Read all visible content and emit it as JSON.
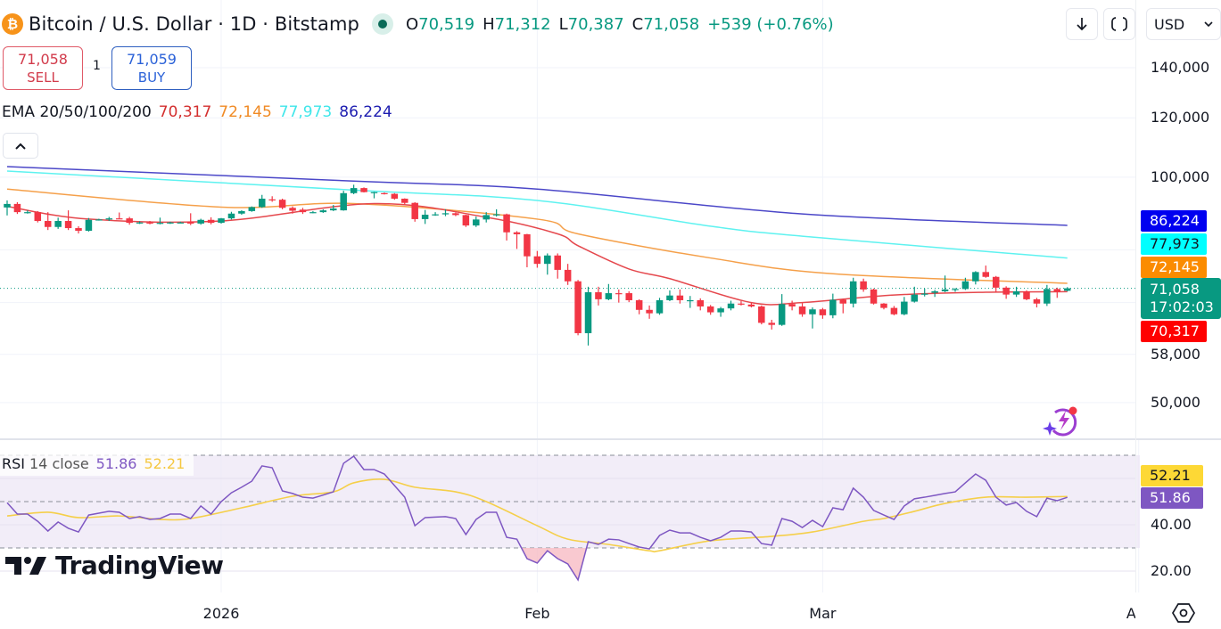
{
  "header": {
    "symbol_icon": "bitcoin-icon",
    "title": "Bitcoin / U.S. Dollar · 1D · Bitstamp",
    "market_status_icon": "market-open-dot-icon",
    "ohlc": {
      "o_label": "O",
      "o_value": "70,519",
      "h_label": "H",
      "h_value": "71,312",
      "l_label": "L",
      "l_value": "70,387",
      "c_label": "C",
      "c_value": "71,058",
      "change": "+539 (+0.76%)"
    }
  },
  "trade": {
    "sell_price": "71,058",
    "sell_label": "SELL",
    "quantity": "1",
    "buy_price": "71,059",
    "buy_label": "BUY"
  },
  "ema_legend": {
    "label": "EMA 20/50/100/200",
    "values": [
      "70,317",
      "72,145",
      "77,973",
      "86,224"
    ]
  },
  "toolbar": {
    "collapse_icon": "chevron-up-icon",
    "download_icon": "arrow-down-icon",
    "fullscreen_icon": "fullscreen-icon",
    "currency": "USD",
    "settings_icon": "settings-icon"
  },
  "rsi_legend": {
    "label": "RSI",
    "params": "14 close",
    "rsi_value": "51.86",
    "ma_value": "52.21"
  },
  "logo": {
    "text": "TradingView"
  },
  "colors": {
    "up": "#089981",
    "down": "#f23645",
    "ema20": "#e5484d",
    "ema50": "#f5a04a",
    "ema100": "#5ef2f0",
    "ema200": "#4b47c8",
    "rsi": "#7e57c2",
    "rsi_ma": "#f5cf4a",
    "rsi_band": "#ede7f6",
    "oversold_fill": "#f8bbc4"
  },
  "chart_data": {
    "type": "candlestick",
    "scale": "log",
    "y_range": [
      44800,
      172400
    ],
    "grid": true,
    "price_axis": {
      "ticks": [
        {
          "value": 140000,
          "label": "140,000"
        },
        {
          "value": 120000,
          "label": "120,000"
        },
        {
          "value": 100000,
          "label": "100,000"
        },
        {
          "value": 58000,
          "label": "58,000"
        },
        {
          "value": 50000,
          "label": "50,000"
        }
      ],
      "hidden_grid_values": [
        80000,
        68000
      ]
    },
    "time_axis": [
      {
        "date": "2026-01-01",
        "label": "2026"
      },
      {
        "date": "2026-02-01",
        "label": "Feb"
      },
      {
        "date": "2026-03-01",
        "label": "Mar"
      },
      {
        "date": "2026-04-01",
        "label": "Apr"
      }
    ],
    "last_price": 71058,
    "badges": {
      "ema200": "86,224",
      "ema100": "77,973",
      "ema50": "72,145",
      "last": "71,058",
      "countdown": "17:02:03",
      "ema20": "70,317",
      "rsi_ma": "52.21",
      "rsi": "51.86"
    },
    "candle_fields": [
      "date",
      "open",
      "high",
      "low",
      "close"
    ],
    "candles": [
      [
        "2025-12-11",
        91100,
        93100,
        88900,
        92100
      ],
      [
        "2025-12-12",
        92100,
        92600,
        89300,
        89800
      ],
      [
        "2025-12-13",
        89800,
        90300,
        89400,
        89800
      ],
      [
        "2025-12-14",
        89800,
        90100,
        87000,
        87400
      ],
      [
        "2025-12-15",
        87400,
        89800,
        85000,
        85800
      ],
      [
        "2025-12-16",
        85800,
        88300,
        85300,
        87400
      ],
      [
        "2025-12-17",
        87400,
        90300,
        85000,
        85500
      ],
      [
        "2025-12-18",
        85500,
        86000,
        84100,
        84800
      ],
      [
        "2025-12-19",
        84800,
        88200,
        84600,
        87700
      ],
      [
        "2025-12-20",
        87700,
        88000,
        87500,
        87800
      ],
      [
        "2025-12-21",
        87800,
        88500,
        87400,
        88100
      ],
      [
        "2025-12-22",
        88100,
        89700,
        87900,
        87900
      ],
      [
        "2025-12-23",
        88100,
        88500,
        86400,
        86900
      ],
      [
        "2025-12-24",
        86900,
        87300,
        86600,
        87000
      ],
      [
        "2025-12-25",
        87000,
        87400,
        86500,
        86700
      ],
      [
        "2025-12-26",
        86700,
        88300,
        86500,
        86900
      ],
      [
        "2025-12-27",
        86900,
        87200,
        86600,
        87000
      ],
      [
        "2025-12-28",
        87000,
        87200,
        86800,
        87000
      ],
      [
        "2025-12-29",
        87200,
        89500,
        86300,
        86700
      ],
      [
        "2025-12-30",
        86700,
        88000,
        86400,
        87700
      ],
      [
        "2025-12-31",
        87700,
        88400,
        86500,
        86900
      ],
      [
        "2026-01-01",
        86900,
        88200,
        86700,
        88100
      ],
      [
        "2026-01-02",
        88100,
        89900,
        87800,
        89400
      ],
      [
        "2026-01-03",
        89400,
        90300,
        89100,
        90100
      ],
      [
        "2026-01-04",
        90100,
        91400,
        89900,
        91200
      ],
      [
        "2026-01-05",
        91200,
        94700,
        91000,
        93600
      ],
      [
        "2026-01-06",
        93400,
        94300,
        92700,
        93300
      ],
      [
        "2026-01-07",
        93300,
        93600,
        90600,
        91000
      ],
      [
        "2026-01-08",
        91000,
        91400,
        89400,
        90200
      ],
      [
        "2026-01-09",
        90500,
        91000,
        89300,
        89800
      ],
      [
        "2026-01-10",
        89800,
        90100,
        89500,
        89800
      ],
      [
        "2026-01-11",
        89800,
        90600,
        89600,
        90300
      ],
      [
        "2026-01-12",
        90300,
        91800,
        90100,
        90800
      ],
      [
        "2026-01-13",
        90300,
        95900,
        90200,
        95200
      ],
      [
        "2026-01-14",
        95200,
        97700,
        94900,
        96700
      ],
      [
        "2026-01-15",
        96700,
        96900,
        95400,
        95500
      ],
      [
        "2026-01-16",
        95500,
        95600,
        93700,
        95500
      ],
      [
        "2026-01-17",
        95200,
        95400,
        94800,
        95000
      ],
      [
        "2026-01-18",
        95000,
        95200,
        93300,
        93600
      ],
      [
        "2026-01-19",
        93600,
        93700,
        92000,
        92400
      ],
      [
        "2026-01-20",
        92400,
        92600,
        87200,
        87900
      ],
      [
        "2026-01-21",
        87900,
        90400,
        86600,
        89100
      ],
      [
        "2026-01-22",
        89100,
        89800,
        88800,
        89200
      ],
      [
        "2026-01-23",
        89200,
        90600,
        88700,
        89500
      ],
      [
        "2026-01-24",
        89500,
        89700,
        88700,
        89000
      ],
      [
        "2026-01-25",
        89000,
        89100,
        85800,
        86200
      ],
      [
        "2026-01-26",
        86200,
        88600,
        85800,
        87800
      ],
      [
        "2026-01-27",
        87800,
        89800,
        87000,
        89000
      ],
      [
        "2026-01-28",
        89000,
        90600,
        88600,
        89200
      ],
      [
        "2026-01-29",
        89200,
        89400,
        82300,
        84400
      ],
      [
        "2026-01-30",
        84400,
        84700,
        80200,
        83900
      ],
      [
        "2026-01-31",
        83900,
        84000,
        75800,
        78400
      ],
      [
        "2026-02-01",
        78400,
        79700,
        75700,
        76600
      ],
      [
        "2026-02-02",
        76600,
        79100,
        74100,
        78600
      ],
      [
        "2026-02-03",
        78600,
        79100,
        73200,
        75200
      ],
      [
        "2026-02-04",
        75200,
        76600,
        71800,
        72600
      ],
      [
        "2026-02-05",
        72600,
        72900,
        61500,
        61900
      ],
      [
        "2026-02-06",
        61900,
        71400,
        59600,
        70200
      ],
      [
        "2026-02-07",
        70200,
        71400,
        67400,
        68700
      ],
      [
        "2026-02-08",
        68700,
        72000,
        68500,
        70000
      ],
      [
        "2026-02-09",
        70000,
        70800,
        68000,
        69900
      ],
      [
        "2026-02-10",
        70000,
        70400,
        68100,
        68500
      ],
      [
        "2026-02-11",
        68500,
        68700,
        65600,
        66500
      ],
      [
        "2026-02-12",
        66500,
        67400,
        64700,
        65800
      ],
      [
        "2026-02-13",
        65800,
        69000,
        65500,
        68500
      ],
      [
        "2026-02-14",
        68500,
        70600,
        68300,
        69500
      ],
      [
        "2026-02-15",
        69500,
        70800,
        67800,
        68500
      ],
      [
        "2026-02-16",
        68500,
        69400,
        66900,
        68500
      ],
      [
        "2026-02-17",
        68500,
        68900,
        66400,
        67200
      ],
      [
        "2026-02-18",
        67200,
        67500,
        65500,
        66000
      ],
      [
        "2026-02-19",
        66000,
        67100,
        65100,
        66800
      ],
      [
        "2026-02-20",
        66800,
        68400,
        66400,
        67800
      ],
      [
        "2026-02-21",
        67800,
        68300,
        67400,
        67600
      ],
      [
        "2026-02-22",
        67600,
        67900,
        67000,
        67200
      ],
      [
        "2026-02-23",
        67200,
        67400,
        63600,
        63900
      ],
      [
        "2026-02-24",
        63900,
        64500,
        62600,
        63500
      ],
      [
        "2026-02-25",
        63500,
        69800,
        63300,
        67700
      ],
      [
        "2026-02-26",
        67700,
        68400,
        66400,
        67200
      ],
      [
        "2026-02-27",
        67200,
        67900,
        65100,
        65600
      ],
      [
        "2026-02-28",
        65600,
        67000,
        62800,
        66600
      ],
      [
        "2026-03-01",
        66600,
        66900,
        64700,
        65400
      ],
      [
        "2026-03-02",
        65400,
        69900,
        64800,
        68600
      ],
      [
        "2026-03-03",
        68600,
        68800,
        65800,
        67800
      ],
      [
        "2026-03-04",
        67800,
        73400,
        67000,
        72600
      ],
      [
        "2026-03-05",
        72600,
        73200,
        70300,
        70800
      ],
      [
        "2026-03-06",
        70800,
        71000,
        67600,
        67800
      ],
      [
        "2026-03-07",
        67800,
        67900,
        66600,
        66900
      ],
      [
        "2026-03-08",
        66900,
        67300,
        65400,
        65600
      ],
      [
        "2026-03-09",
        65600,
        69200,
        65400,
        68200
      ],
      [
        "2026-03-10",
        68200,
        71400,
        68000,
        69700
      ],
      [
        "2026-03-11",
        69900,
        71000,
        69300,
        69900
      ],
      [
        "2026-03-12",
        70100,
        70700,
        69200,
        70400
      ],
      [
        "2026-03-13",
        70400,
        73900,
        70200,
        70800
      ],
      [
        "2026-03-14",
        70800,
        71100,
        70300,
        70900
      ],
      [
        "2026-03-15",
        70900,
        73400,
        70700,
        72600
      ],
      [
        "2026-03-16",
        72600,
        74900,
        71900,
        74700
      ],
      [
        "2026-03-17",
        74700,
        76200,
        73400,
        73600
      ],
      [
        "2026-03-18",
        73600,
        73800,
        70200,
        71200
      ],
      [
        "2026-03-19",
        71200,
        71500,
        68800,
        69700
      ],
      [
        "2026-03-20",
        69700,
        71400,
        69200,
        70400
      ],
      [
        "2026-03-21",
        70400,
        70600,
        68500,
        68700
      ],
      [
        "2026-03-22",
        68700,
        69000,
        67000,
        67800
      ],
      [
        "2026-03-23",
        67800,
        71800,
        67300,
        70900
      ],
      [
        "2026-03-24",
        70900,
        71200,
        69000,
        70300
      ],
      [
        "2026-03-25",
        70519,
        71312,
        70387,
        71058
      ]
    ],
    "ema": [
      {
        "name": "EMA 20",
        "color_key": "ema20",
        "points": [
          [
            "2025-12-11",
            91400
          ],
          [
            "2025-12-19",
            87900
          ],
          [
            "2026-01-01",
            87400
          ],
          [
            "2026-01-16",
            92200
          ],
          [
            "2026-01-27",
            88400
          ],
          [
            "2026-02-03",
            84000
          ],
          [
            "2026-02-05",
            81000
          ],
          [
            "2026-02-10",
            75400
          ],
          [
            "2026-02-14",
            73200
          ],
          [
            "2026-02-22",
            68000
          ],
          [
            "2026-02-27",
            68000
          ],
          [
            "2026-03-08",
            69600
          ],
          [
            "2026-03-17",
            70200
          ],
          [
            "2026-03-25",
            70317
          ]
        ]
      },
      {
        "name": "EMA 50",
        "color_key": "ema50",
        "points": [
          [
            "2025-12-11",
            96400
          ],
          [
            "2026-01-01",
            91200
          ],
          [
            "2026-01-14",
            92200
          ],
          [
            "2026-02-01",
            87900
          ],
          [
            "2026-02-05",
            84000
          ],
          [
            "2026-02-18",
            78000
          ],
          [
            "2026-03-02",
            74300
          ],
          [
            "2026-03-25",
            72145
          ]
        ]
      },
      {
        "name": "EMA 100",
        "color_key": "ema100",
        "points": [
          [
            "2025-12-11",
            101900
          ],
          [
            "2026-01-14",
            96100
          ],
          [
            "2026-02-01",
            93100
          ],
          [
            "2026-02-18",
            86000
          ],
          [
            "2026-02-27",
            83400
          ],
          [
            "2026-03-25",
            77973
          ]
        ]
      },
      {
        "name": "EMA 200",
        "color_key": "ema200",
        "points": [
          [
            "2025-12-11",
            103300
          ],
          [
            "2026-01-14",
            98800
          ],
          [
            "2026-02-01",
            96400
          ],
          [
            "2026-02-27",
            89300
          ],
          [
            "2026-03-25",
            86224
          ]
        ]
      }
    ],
    "rsi": {
      "period": 14,
      "y_range": [
        10.8,
        76.9
      ],
      "levels": {
        "upper": 70,
        "middle": 50,
        "lower": 30
      },
      "ticks": [
        {
          "value": 40,
          "label": "40.00"
        },
        {
          "value": 20,
          "label": "20.00"
        }
      ],
      "grid_values": [
        60,
        40,
        20
      ],
      "values": [
        49.5,
        44.6,
        44.6,
        41.5,
        37.3,
        41.2,
        38.5,
        36.9,
        44.2,
        45.0,
        45.8,
        45.4,
        42.7,
        43.5,
        42.3,
        42.7,
        44.6,
        44.6,
        42.7,
        48.1,
        44.6,
        50.0,
        53.8,
        56.2,
        58.8,
        65.4,
        64.6,
        54.6,
        53.5,
        51.9,
        51.5,
        52.8,
        54.2,
        66.5,
        69.6,
        63.8,
        63.8,
        61.9,
        56.9,
        51.9,
        39.6,
        43.1,
        43.3,
        43.5,
        42.7,
        35.8,
        42.3,
        45.4,
        45.4,
        34.6,
        33.8,
        25.4,
        23.5,
        28.8,
        25.4,
        23.1,
        16.2,
        32.7,
        31.5,
        33.8,
        33.5,
        31.9,
        30.4,
        29.6,
        35.4,
        37.7,
        36.5,
        36.5,
        34.6,
        33.1,
        34.6,
        37.3,
        37.3,
        36.9,
        31.9,
        31.2,
        42.7,
        41.5,
        38.8,
        41.9,
        39.2,
        47.3,
        46.5,
        55.8,
        51.9,
        46.2,
        44.2,
        42.3,
        48.1,
        51.2,
        51.9,
        52.7,
        53.5,
        54.2,
        58.1,
        61.9,
        59.2,
        51.9,
        48.5,
        49.6,
        45.8,
        43.5,
        51.5,
        50.4,
        51.86
      ],
      "ma_points": [
        [
          "2025-12-11",
          43.8
        ],
        [
          "2025-12-15",
          45.4
        ],
        [
          "2025-12-18",
          43.1
        ],
        [
          "2025-12-22",
          43.8
        ],
        [
          "2025-12-26",
          42.3
        ],
        [
          "2025-12-29",
          42.7
        ],
        [
          "2026-01-03",
          47.3
        ],
        [
          "2026-01-08",
          52.3
        ],
        [
          "2026-01-12",
          54.2
        ],
        [
          "2026-01-14",
          58.1
        ],
        [
          "2026-01-17",
          59.6
        ],
        [
          "2026-01-20",
          56.2
        ],
        [
          "2026-01-24",
          54.2
        ],
        [
          "2026-01-27",
          50.0
        ],
        [
          "2026-02-01",
          39.6
        ],
        [
          "2026-02-04",
          33.8
        ],
        [
          "2026-02-08",
          31.5
        ],
        [
          "2026-02-12",
          28.8
        ],
        [
          "2026-02-13",
          28.8
        ],
        [
          "2026-02-18",
          33.1
        ],
        [
          "2026-02-24",
          35.0
        ],
        [
          "2026-02-28",
          36.9
        ],
        [
          "2026-03-05",
          41.5
        ],
        [
          "2026-03-07",
          42.7
        ],
        [
          "2026-03-10",
          45.8
        ],
        [
          "2026-03-13",
          49.2
        ],
        [
          "2026-03-17",
          51.9
        ],
        [
          "2026-03-21",
          51.9
        ],
        [
          "2026-03-25",
          52.21
        ]
      ]
    }
  }
}
